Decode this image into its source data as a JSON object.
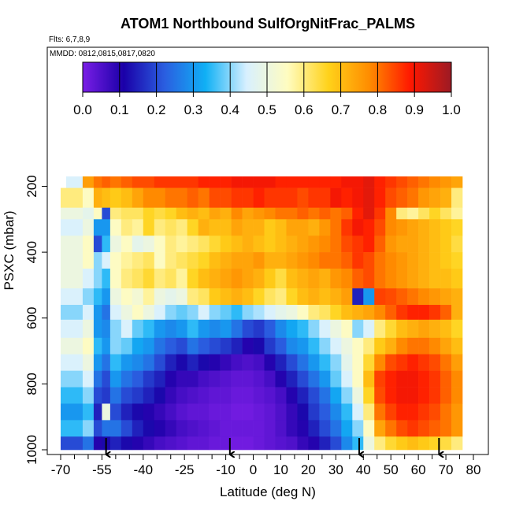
{
  "chart_data": {
    "type": "heatmap",
    "title": "ATOM1 Northbound SulfOrgNitFrac_PALMS",
    "flights_label": "Flts: 6,7,8,9",
    "dates_label": "MMDD: 0812,0815,0817,0820",
    "xlabel": "Latitude (deg N)",
    "ylabel": "PSXC (mbar)",
    "xlim": [
      -70,
      80
    ],
    "ylim": [
      1000,
      150
    ],
    "x_ticks": [
      -70,
      -55,
      -40,
      -25,
      -10,
      0,
      10,
      20,
      30,
      40,
      50,
      60,
      70,
      80
    ],
    "x_minor_ticks": [
      -65,
      -60,
      -50,
      -45,
      -35,
      -30,
      -20,
      -15,
      -5,
      5,
      15,
      25,
      35,
      45,
      55,
      65,
      75
    ],
    "y_ticks": [
      200,
      400,
      600,
      800,
      1000
    ],
    "colorbar": {
      "ticks": [
        0.0,
        0.1,
        0.2,
        0.3,
        0.4,
        0.5,
        0.6,
        0.7,
        0.8,
        0.9,
        1.0
      ],
      "tick_labels": [
        "0.0",
        "0.1",
        "0.2",
        "0.3",
        "0.4",
        "0.5",
        "0.6",
        "0.7",
        "0.8",
        "0.9",
        "1.0"
      ],
      "color_stops": [
        "#7a1ee6",
        "#1a00a8",
        "#2a5ee0",
        "#10b0f5",
        "#d8f0ff",
        "#fffcc0",
        "#ffd21a",
        "#ff8c00",
        "#ff1800",
        "#9c1a24"
      ]
    },
    "lat_bin_edges": [
      -68,
      -62,
      -58,
      -55,
      -52,
      -48,
      -44,
      -40,
      -36,
      -32,
      -28,
      -24,
      -20,
      -16,
      -12,
      -8,
      -4,
      0,
      4,
      8,
      12,
      16,
      20,
      24,
      28,
      32,
      36,
      40,
      44,
      48,
      52,
      56,
      60,
      64,
      68,
      72,
      76
    ],
    "pressure_bands": [
      {
        "p": [
          170,
          205
        ],
        "lat": [
          -68,
          76
        ],
        "values": [
          0.45,
          0.75,
          0.8,
          0.82,
          0.8,
          0.82,
          0.84,
          0.84,
          0.86,
          0.86,
          0.86,
          0.86,
          0.88,
          0.88,
          0.88,
          0.9,
          0.9,
          0.9,
          0.9,
          0.88,
          0.88,
          0.88,
          0.88,
          0.88,
          0.88,
          0.9,
          0.9,
          0.92,
          0.88,
          0.86,
          0.84,
          0.82,
          0.8,
          0.78,
          0.76,
          0.74
        ]
      },
      {
        "p": [
          205,
          265
        ],
        "lat": [
          -70,
          80
        ],
        "values": [
          0.6,
          0.55,
          0.72,
          0.7,
          0.68,
          0.7,
          0.74,
          0.78,
          0.78,
          0.8,
          0.8,
          0.82,
          0.8,
          0.84,
          0.84,
          0.86,
          0.86,
          0.88,
          0.86,
          0.86,
          0.86,
          0.84,
          0.86,
          0.86,
          0.9,
          0.88,
          0.9,
          0.92,
          0.88,
          0.84,
          0.82,
          0.8,
          0.76,
          0.74,
          0.72,
          0.6,
          0.55
        ]
      },
      {
        "p": [
          265,
          300
        ],
        "lat": [
          -70,
          80
        ],
        "values": [
          0.5,
          0.48,
          0.55,
          0.2,
          0.6,
          0.62,
          0.62,
          0.66,
          0.64,
          0.66,
          0.7,
          0.72,
          0.7,
          0.74,
          0.72,
          0.78,
          0.74,
          0.76,
          0.78,
          0.8,
          0.8,
          0.82,
          0.8,
          0.82,
          0.8,
          0.82,
          0.88,
          0.92,
          0.86,
          0.78,
          0.6,
          0.58,
          0.62,
          0.66,
          0.62,
          0.58,
          0.55
        ]
      },
      {
        "p": [
          300,
          350
        ],
        "lat": [
          -70,
          80
        ],
        "values": [
          0.45,
          0.5,
          0.3,
          0.3,
          0.55,
          0.6,
          0.58,
          0.66,
          0.6,
          0.62,
          0.6,
          0.66,
          0.72,
          0.7,
          0.7,
          0.74,
          0.72,
          0.72,
          0.68,
          0.7,
          0.74,
          0.74,
          0.72,
          0.76,
          0.8,
          0.86,
          0.9,
          0.88,
          0.84,
          0.78,
          0.76,
          0.74,
          0.72,
          0.7,
          0.68,
          0.66,
          0.6
        ]
      },
      {
        "p": [
          350,
          400
        ],
        "lat": [
          -70,
          80
        ],
        "values": [
          0.5,
          0.55,
          0.2,
          0.35,
          0.5,
          0.55,
          0.48,
          0.5,
          0.55,
          0.6,
          0.58,
          0.6,
          0.62,
          0.65,
          0.68,
          0.7,
          0.72,
          0.7,
          0.68,
          0.7,
          0.72,
          0.74,
          0.76,
          0.78,
          0.8,
          0.84,
          0.86,
          0.88,
          0.82,
          0.76,
          0.74,
          0.74,
          0.72,
          0.7,
          0.68,
          0.64,
          0.6
        ]
      },
      {
        "p": [
          400,
          450
        ],
        "lat": [
          -70,
          80
        ],
        "values": [
          0.5,
          0.55,
          0.4,
          0.45,
          0.55,
          0.58,
          0.6,
          0.62,
          0.55,
          0.6,
          0.62,
          0.64,
          0.66,
          0.7,
          0.72,
          0.74,
          0.74,
          0.76,
          0.72,
          0.72,
          0.74,
          0.76,
          0.78,
          0.8,
          0.8,
          0.82,
          0.86,
          0.84,
          0.8,
          0.78,
          0.76,
          0.74,
          0.72,
          0.7,
          0.68,
          0.66,
          0.62
        ]
      },
      {
        "p": [
          450,
          510
        ],
        "lat": [
          -70,
          80
        ],
        "values": [
          0.5,
          0.45,
          0.4,
          0.35,
          0.55,
          0.6,
          0.62,
          0.65,
          0.6,
          0.62,
          0.58,
          0.66,
          0.7,
          0.72,
          0.74,
          0.76,
          0.74,
          0.72,
          0.68,
          0.64,
          0.7,
          0.72,
          0.74,
          0.72,
          0.76,
          0.78,
          0.82,
          0.84,
          0.8,
          0.78,
          0.76,
          0.74,
          0.72,
          0.7,
          0.7,
          0.68,
          0.66
        ]
      },
      {
        "p": [
          510,
          560
        ],
        "lat": [
          -70,
          80
        ],
        "values": [
          0.45,
          0.4,
          0.35,
          0.3,
          0.5,
          0.55,
          0.52,
          0.58,
          0.5,
          0.48,
          0.5,
          0.6,
          0.62,
          0.68,
          0.7,
          0.72,
          0.7,
          0.66,
          0.62,
          0.6,
          0.66,
          0.7,
          0.72,
          0.7,
          0.72,
          0.75,
          0.15,
          0.3,
          0.85,
          0.84,
          0.82,
          0.8,
          0.78,
          0.76,
          0.74,
          0.72,
          0.7
        ]
      },
      {
        "p": [
          560,
          605
        ],
        "lat": [
          -70,
          80
        ],
        "values": [
          0.4,
          0.45,
          0.3,
          0.25,
          0.45,
          0.5,
          0.55,
          0.5,
          0.45,
          0.4,
          0.38,
          0.4,
          0.45,
          0.4,
          0.38,
          0.35,
          0.4,
          0.42,
          0.45,
          0.48,
          0.5,
          0.55,
          0.6,
          0.62,
          0.66,
          0.7,
          0.72,
          0.74,
          0.78,
          0.82,
          0.86,
          0.88,
          0.88,
          0.86,
          0.82,
          0.72,
          0.65
        ]
      },
      {
        "p": [
          605,
          660
        ],
        "lat": [
          -70,
          80
        ],
        "values": [
          0.45,
          0.5,
          0.3,
          0.28,
          0.4,
          0.45,
          0.38,
          0.35,
          0.3,
          0.28,
          0.3,
          0.35,
          0.3,
          0.28,
          0.3,
          0.25,
          0.2,
          0.18,
          0.22,
          0.28,
          0.32,
          0.35,
          0.4,
          0.45,
          0.5,
          0.55,
          0.4,
          0.45,
          0.6,
          0.65,
          0.7,
          0.72,
          0.74,
          0.72,
          0.7,
          0.66,
          0.6
        ]
      },
      {
        "p": [
          660,
          710
        ],
        "lat": [
          -70,
          80
        ],
        "values": [
          0.5,
          0.55,
          0.35,
          0.3,
          0.4,
          0.38,
          0.32,
          0.3,
          0.25,
          0.22,
          0.2,
          0.25,
          0.22,
          0.2,
          0.18,
          0.15,
          0.1,
          0.12,
          0.18,
          0.22,
          0.28,
          0.3,
          0.35,
          0.4,
          0.45,
          0.5,
          0.55,
          0.6,
          0.68,
          0.72,
          0.78,
          0.8,
          0.8,
          0.78,
          0.74,
          0.7,
          0.65
        ]
      },
      {
        "p": [
          710,
          760
        ],
        "lat": [
          -70,
          80
        ],
        "values": [
          0.45,
          0.5,
          0.3,
          0.25,
          0.35,
          0.3,
          0.28,
          0.25,
          0.2,
          0.15,
          0.12,
          0.15,
          0.12,
          0.1,
          0.08,
          0.06,
          0.05,
          0.06,
          0.1,
          0.15,
          0.2,
          0.25,
          0.3,
          0.35,
          0.4,
          0.48,
          0.55,
          0.65,
          0.78,
          0.84,
          0.86,
          0.88,
          0.86,
          0.84,
          0.8,
          0.75,
          0.7
        ]
      },
      {
        "p": [
          760,
          810
        ],
        "lat": [
          -70,
          80
        ],
        "values": [
          0.4,
          0.45,
          0.25,
          0.2,
          0.3,
          0.25,
          0.22,
          0.18,
          0.15,
          0.1,
          0.08,
          0.08,
          0.06,
          0.05,
          0.04,
          0.03,
          0.03,
          0.04,
          0.06,
          0.1,
          0.15,
          0.2,
          0.25,
          0.3,
          0.38,
          0.45,
          0.55,
          0.7,
          0.85,
          0.88,
          0.9,
          0.9,
          0.88,
          0.86,
          0.82,
          0.78,
          0.72
        ]
      },
      {
        "p": [
          810,
          860
        ],
        "lat": [
          -70,
          80
        ],
        "values": [
          0.35,
          0.4,
          0.2,
          0.18,
          0.25,
          0.2,
          0.18,
          0.15,
          0.12,
          0.08,
          0.06,
          0.05,
          0.04,
          0.03,
          0.03,
          0.02,
          0.02,
          0.03,
          0.04,
          0.06,
          0.1,
          0.15,
          0.2,
          0.25,
          0.32,
          0.4,
          0.5,
          0.66,
          0.84,
          0.88,
          0.9,
          0.9,
          0.88,
          0.86,
          0.82,
          0.78,
          0.72
        ]
      },
      {
        "p": [
          860,
          910
        ],
        "lat": [
          -70,
          80
        ],
        "values": [
          0.3,
          0.35,
          0.15,
          0.5,
          0.2,
          0.15,
          0.12,
          0.1,
          0.08,
          0.06,
          0.04,
          0.03,
          0.03,
          0.02,
          0.02,
          0.01,
          0.01,
          0.02,
          0.03,
          0.05,
          0.08,
          0.12,
          0.18,
          0.22,
          0.28,
          0.35,
          0.45,
          0.6,
          0.8,
          0.85,
          0.88,
          0.88,
          0.86,
          0.84,
          0.8,
          0.76,
          0.7
        ]
      },
      {
        "p": [
          910,
          960
        ],
        "lat": [
          -70,
          80
        ],
        "values": [
          0.35,
          0.4,
          0.2,
          0.25,
          0.25,
          0.2,
          0.15,
          0.12,
          0.1,
          0.08,
          0.06,
          0.05,
          0.04,
          0.03,
          0.02,
          0.02,
          0.02,
          0.02,
          0.03,
          0.05,
          0.08,
          0.1,
          0.15,
          0.2,
          0.25,
          0.32,
          0.4,
          0.55,
          0.74,
          0.8,
          0.84,
          0.86,
          0.84,
          0.82,
          0.8,
          0.76,
          0.7
        ]
      },
      {
        "p": [
          960,
          1000
        ],
        "lat": [
          -70,
          80
        ],
        "values": [
          0.2,
          0.25,
          0.1,
          0.12,
          0.15,
          0.12,
          0.1,
          0.08,
          0.06,
          0.05,
          0.04,
          0.03,
          0.03,
          0.02,
          0.02,
          0.01,
          0.01,
          0.02,
          0.03,
          0.04,
          0.05,
          0.08,
          0.1,
          0.15,
          0.2,
          0.28,
          0.35,
          0.5,
          0.6,
          0.65,
          0.68,
          0.7,
          0.68,
          0.66,
          0.64,
          0.6,
          0.55
        ]
      }
    ],
    "arrows_lat": [
      -53.5,
      -8.5,
      38.5,
      67.5
    ]
  }
}
